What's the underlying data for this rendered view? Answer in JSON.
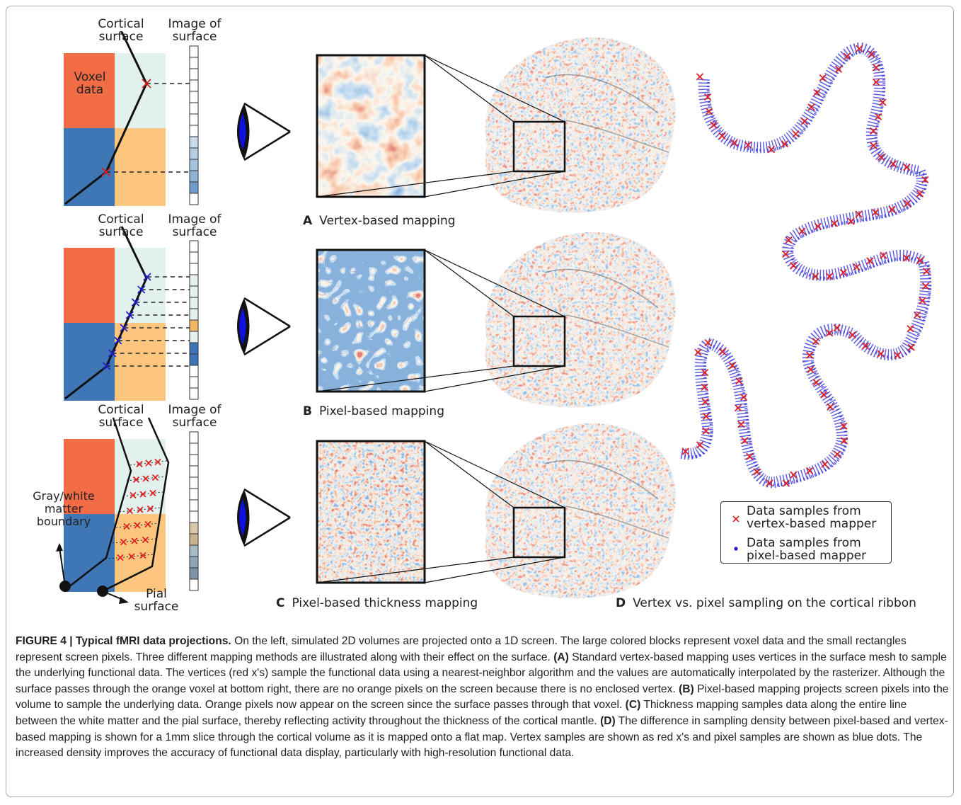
{
  "figure": {
    "rows": [
      {
        "cortical_label": "Cortical surface",
        "image_label": "Image of surface",
        "letter": "A",
        "title": "Vertex-based mapping"
      },
      {
        "cortical_label": "Cortical surface",
        "image_label": "Image of surface",
        "letter": "B",
        "title": "Pixel-based mapping"
      },
      {
        "cortical_label": "Cortical surface",
        "image_label": "Image of surface",
        "letter": "C",
        "title": "Pixel-based thickness mapping"
      }
    ],
    "voxel_label": "Voxel data",
    "gray_white_label": "Gray/white matter boundary",
    "pial_label": "Pial surface",
    "panel_d": {
      "letter": "D",
      "title": "Vertex vs. pixel sampling on the cortical ribbon"
    },
    "legend": [
      "Data samples from vertex-based mapper",
      "Data samples from pixel-based mapper"
    ]
  },
  "caption": {
    "label": "FIGURE 4 | Typical fMRI data projections.",
    "intro": "On the left, simulated 2D volumes are projected onto a 1D screen. The large colored blocks represent voxel data and the small rectangles represent screen pixels. Three different mapping methods are illustrated along with their effect on the surface.",
    "items": [
      {
        "label": "(A)",
        "text": "Standard vertex-based mapping uses vertices in the surface mesh to sample the underlying functional data. The vertices (red x's) sample the functional data using a nearest-neighbor algorithm and the values are automatically interpolated by the rasterizer. Although the surface passes through the orange voxel at bottom right, there are no orange pixels on the screen because there is no enclosed vertex."
      },
      {
        "label": "(B)",
        "text": "Pixel-based mapping projects screen pixels into the volume to sample the underlying data. Orange pixels now appear on the screen since the surface passes through that voxel."
      },
      {
        "label": "(C)",
        "text": "Thickness mapping samples data along the entire line between the white matter and the pial surface, thereby reflecting activity throughout the thickness of the cortical mantle."
      },
      {
        "label": "(D)",
        "text": "The difference in sampling density between pixel-based and vertex-based mapping is shown for a 1mm slice through the cortical volume as it is mapped onto a flat map. Vertex samples are shown as red x's and pixel samples are shown as blue dots. The increased density improves the accuracy of functional data display, particularly with high-resolution functional data."
      }
    ]
  }
}
